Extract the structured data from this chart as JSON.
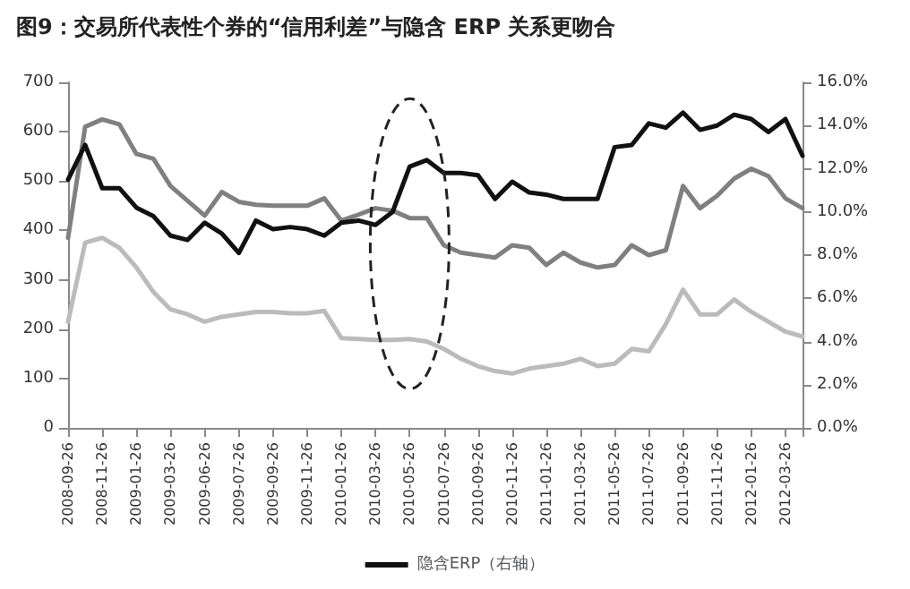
{
  "chart_data": {
    "type": "line",
    "title": "图9：交易所代表性个券的“信用利差”与隐含 ERP 关系更吻合",
    "categories": [
      "2008-09-26",
      null,
      "2008-11-26",
      null,
      "2009-01-26",
      null,
      "2009-03-26",
      null,
      "2009-06-26",
      null,
      "2009-07-26",
      null,
      "2009-09-26",
      null,
      "2009-11-26",
      null,
      "2010-01-26",
      null,
      "2010-03-26",
      null,
      "2010-05-26",
      null,
      "2010-07-26",
      null,
      "2010-09-26",
      null,
      "2010-11-26",
      null,
      "2011-01-26",
      null,
      "2011-03-26",
      null,
      "2011-05-26",
      null,
      "2011-07-26",
      null,
      "2011-09-26",
      null,
      "2011-11-26",
      null,
      "2012-01-26",
      null,
      "2012-03-26",
      null
    ],
    "series": [
      {
        "color": "#bbbbbb",
        "values": [
          215,
          375,
          385,
          365,
          325,
          275,
          240,
          230,
          215,
          225,
          230,
          235,
          235,
          232,
          232,
          237,
          182,
          180,
          178,
          178,
          180,
          175,
          160,
          140,
          125,
          115,
          110,
          120,
          125,
          130,
          140,
          125,
          130,
          160,
          155,
          210,
          280,
          230,
          230,
          260,
          235,
          215,
          195,
          185
        ]
      },
      {
        "color": "#808080",
        "values": [
          385,
          610,
          625,
          615,
          555,
          545,
          490,
          460,
          430,
          478,
          458,
          452,
          450,
          450,
          450,
          465,
          420,
          432,
          445,
          440,
          425,
          425,
          370,
          355,
          350,
          345,
          370,
          365,
          330,
          355,
          335,
          325,
          330,
          370,
          350,
          360,
          490,
          445,
          470,
          505,
          525,
          510,
          465,
          445
        ]
      },
      {
        "name": "隐含ERP（右轴）",
        "color": "#111111",
        "axis": "y2",
        "values": [
          11.5,
          13.1,
          11.1,
          11.1,
          10.2,
          9.8,
          8.9,
          8.7,
          9.5,
          9.0,
          8.1,
          9.6,
          9.2,
          9.3,
          9.2,
          8.9,
          9.5,
          9.6,
          9.4,
          10.0,
          12.1,
          12.4,
          11.8,
          11.8,
          11.7,
          10.6,
          11.4,
          10.9,
          10.8,
          10.6,
          10.6,
          10.6,
          13.0,
          13.1,
          14.1,
          13.9,
          14.6,
          13.8,
          14.0,
          14.5,
          14.3,
          13.7,
          14.3,
          12.6
        ]
      }
    ],
    "ylim": [
      0,
      700
    ],
    "yticks": [
      0,
      100,
      200,
      300,
      400,
      500,
      600,
      700
    ],
    "y2lim": [
      0,
      16
    ],
    "y2ticks": [
      {
        "value": 0,
        "label": "0.0%"
      },
      {
        "value": 2,
        "label": "2.0%"
      },
      {
        "value": 4,
        "label": "4.0%"
      },
      {
        "value": 6,
        "label": "6.0%"
      },
      {
        "value": 8,
        "label": "8.0%"
      },
      {
        "value": 10,
        "label": "10.0%"
      },
      {
        "value": 12,
        "label": "12.0%"
      },
      {
        "value": 14,
        "label": "14.0%"
      },
      {
        "value": 16,
        "label": "16.0%"
      }
    ],
    "legend": "bottom",
    "marker": "none"
  }
}
